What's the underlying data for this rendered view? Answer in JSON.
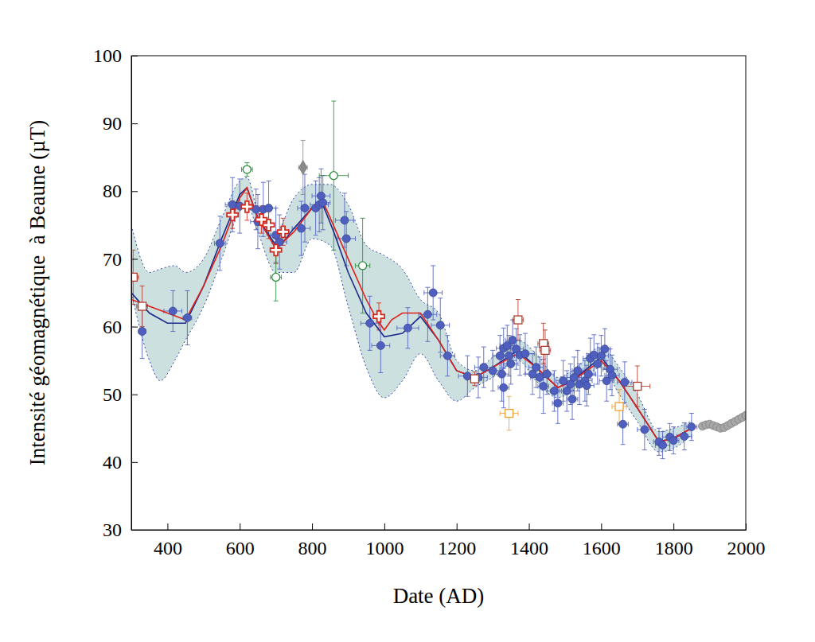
{
  "chart_data": {
    "type": "scatter",
    "x_label": "Date (AD)",
    "y_label": "Intensité géomagnétique  à Beaune (µT)",
    "xlim": [
      300,
      2000
    ],
    "ylim": [
      30,
      100
    ],
    "xticks": [
      400,
      600,
      800,
      1000,
      1200,
      1400,
      1600,
      1800,
      2000
    ],
    "yticks": [
      30,
      40,
      50,
      60,
      70,
      80,
      90,
      100
    ],
    "grid": false,
    "series": [
      {
        "type": "area",
        "color": "#3a48a8",
        "line_style": "dotted",
        "x": [
          300,
          350,
          380,
          420,
          450,
          500,
          550,
          600,
          620,
          650,
          700,
          750,
          800,
          850,
          900,
          950,
          1000,
          1050,
          1100,
          1150,
          1200,
          1250,
          1300,
          1370,
          1420,
          1480,
          1520,
          1600,
          1650,
          1700,
          1760,
          1800,
          1850
        ],
        "values": [
          75,
          68,
          68.5,
          69,
          68,
          70,
          76,
          81.5,
          82,
          77,
          74,
          79,
          81,
          81,
          78,
          72,
          70.5,
          68.5,
          64,
          62,
          55,
          53.5,
          55.5,
          58,
          56,
          52.5,
          53.5,
          57,
          54,
          50,
          44.5,
          45,
          46
        ],
        "lower": [
          65,
          55,
          52,
          55,
          58,
          63,
          70,
          77,
          78,
          74,
          68,
          68,
          73,
          72,
          63,
          54,
          49.5,
          52,
          56,
          52,
          49,
          51,
          52.5,
          55,
          52,
          49.5,
          50.5,
          54,
          50,
          46,
          41.5,
          42,
          44
        ]
      },
      {
        "type": "scatter",
        "marker": "circle",
        "color": "#a8a8a8",
        "x": [
          1880,
          1890,
          1900,
          1910,
          1920,
          1930,
          1940,
          1950,
          1960,
          1970,
          1980,
          1990,
          2000
        ],
        "values": [
          45.3,
          45.5,
          45.6,
          45.4,
          45.2,
          45,
          45.1,
          45.4,
          45.7,
          46,
          46.3,
          46.6,
          46.9
        ]
      },
      {
        "type": "scatter",
        "marker": "circle",
        "color": "#4f5fbf",
        "x": [
          330,
          415,
          455,
          545,
          580,
          600,
          645,
          650,
          665,
          680,
          700,
          710,
          770,
          780,
          810,
          820,
          825,
          830,
          890,
          895,
          960,
          990,
          1065,
          1120,
          1135,
          1155,
          1175,
          1230,
          1260,
          1275,
          1300,
          1320,
          1325,
          1330,
          1330,
          1340,
          1345,
          1350,
          1355,
          1365,
          1375,
          1390,
          1410,
          1420,
          1430,
          1440,
          1450,
          1470,
          1480,
          1495,
          1505,
          1515,
          1520,
          1525,
          1535,
          1540,
          1555,
          1560,
          1565,
          1570,
          1580,
          1590,
          1600,
          1610,
          1615,
          1625,
          1630,
          1660,
          1665,
          1720,
          1760,
          1770,
          1790,
          1800,
          1830,
          1850
        ],
        "values": [
          59.3,
          62.3,
          61.3,
          72.3,
          78,
          77.8,
          77.3,
          75.5,
          77.3,
          77.5,
          73.5,
          72.5,
          74.5,
          77.5,
          77.5,
          78,
          79.3,
          78.3,
          75.7,
          73,
          60.5,
          57.2,
          59.8,
          61.8,
          65,
          60.2,
          55.7,
          52.7,
          52.5,
          54,
          53.5,
          55.7,
          53,
          51,
          56.8,
          57.2,
          55.7,
          54.5,
          58,
          56.7,
          55.8,
          56,
          53,
          54,
          52.5,
          51.2,
          53,
          50.5,
          48.7,
          52,
          50.5,
          51.5,
          49.3,
          52.5,
          53.5,
          51.5,
          52,
          51.3,
          53,
          55.3,
          55.8,
          54.5,
          55.7,
          56.7,
          52,
          53.7,
          52.8,
          45.6,
          51.8,
          44.8,
          43,
          42.5,
          43.7,
          43.2,
          43.8,
          45.2
        ],
        "x_error": [
          10,
          25,
          12,
          15,
          20,
          15,
          20,
          20,
          15,
          20,
          15,
          20,
          25,
          20,
          25,
          25,
          25,
          20,
          25,
          25,
          25,
          25,
          30,
          25,
          25,
          25,
          20,
          25,
          25,
          25,
          20,
          20,
          20,
          15,
          20,
          20,
          15,
          20,
          20,
          20,
          20,
          25,
          20,
          20,
          25,
          15,
          20,
          20,
          15,
          20,
          20,
          15,
          15,
          20,
          15,
          20,
          20,
          20,
          20,
          20,
          20,
          20,
          20,
          15,
          20,
          20,
          20,
          15,
          20,
          20,
          15,
          20,
          20,
          15,
          20,
          15
        ],
        "y_error": [
          4,
          3,
          4,
          4,
          4,
          4,
          3,
          4,
          4,
          4,
          4,
          4,
          4,
          5,
          4,
          4,
          4,
          4,
          4,
          4,
          4,
          4,
          3,
          4,
          4,
          4,
          3,
          3,
          3,
          3,
          3,
          3,
          4,
          3,
          3,
          3,
          3,
          3,
          3,
          3,
          3,
          3,
          3,
          3,
          3,
          4,
          3,
          3,
          3,
          3,
          3,
          3,
          3,
          3,
          3,
          3,
          3,
          3,
          3,
          3,
          3,
          3,
          3,
          3,
          3,
          3,
          3,
          3,
          3,
          3,
          2,
          2,
          2,
          2,
          2,
          2
        ]
      },
      {
        "type": "line",
        "color": "#1c2a8c",
        "x": [
          300,
          350,
          400,
          450,
          500,
          550,
          600,
          620,
          650,
          700,
          720,
          750,
          800,
          830,
          860,
          900,
          950,
          1000,
          1050,
          1100,
          1150,
          1200,
          1250,
          1300,
          1370,
          1420,
          1480,
          1520,
          1600,
          1650,
          1700,
          1760,
          1800,
          1850
        ],
        "values": [
          65,
          62,
          60.5,
          60.5,
          66,
          73,
          79.5,
          80.5,
          76,
          72,
          72.5,
          74.5,
          77.5,
          78,
          74,
          68,
          62,
          58.5,
          59,
          61.5,
          58,
          53.5,
          52.5,
          54,
          56.5,
          54,
          51,
          52,
          55.5,
          52,
          48,
          43,
          43.5,
          45
        ]
      },
      {
        "type": "line",
        "color": "#e0201a",
        "x": [
          300,
          350,
          400,
          450,
          500,
          550,
          600,
          620,
          650,
          700,
          750,
          800,
          830,
          900,
          950,
          980,
          1000,
          1020,
          1050,
          1100,
          1150,
          1200,
          1250,
          1300,
          1370,
          1420,
          1480,
          1520,
          1600,
          1650,
          1700,
          1760,
          1800,
          1850
        ],
        "values": [
          64,
          63,
          62,
          61,
          66,
          72,
          79,
          80.5,
          76,
          71.5,
          74,
          77.5,
          78.5,
          70,
          64,
          61,
          59.5,
          61,
          62,
          62,
          58,
          53.5,
          52.5,
          54,
          56,
          54,
          51,
          52,
          55,
          52,
          48,
          43,
          43.5,
          45
        ]
      },
      {
        "type": "scatter",
        "marker": "cross",
        "color": "#d42a1e",
        "x": [
          580,
          620,
          660,
          680,
          700,
          720,
          985
        ],
        "values": [
          76.5,
          77.7,
          75.8,
          75,
          71.3,
          74,
          61.5
        ],
        "x_error": [
          15,
          15,
          15,
          15,
          15,
          15,
          15
        ],
        "y_error": [
          2,
          2,
          2,
          2,
          2,
          2,
          2
        ]
      },
      {
        "type": "scatter",
        "marker": "square_open",
        "color": "#b0392a",
        "x": [
          305,
          330,
          1250,
          1370,
          1440,
          1445,
          1700
        ],
        "values": [
          67.3,
          63,
          52.3,
          61,
          57.5,
          56.5,
          51.2
        ],
        "x_error": [
          15,
          15,
          20,
          15,
          15,
          15,
          35
        ],
        "y_error": [
          4,
          3,
          1,
          3,
          3,
          3,
          3
        ]
      },
      {
        "type": "scatter",
        "marker": "square_open",
        "color": "#f0a030",
        "x": [
          1345,
          1650
        ],
        "values": [
          47.2,
          48.2
        ],
        "x_error": [
          25,
          20
        ],
        "y_error": [
          2.5,
          2.5
        ]
      },
      {
        "type": "scatter",
        "marker": "circle_open",
        "color": "#2e8b3e",
        "x": [
          620,
          700,
          860,
          940
        ],
        "values": [
          83.2,
          67.3,
          82.3,
          69
        ],
        "x_error": [
          15,
          15,
          40,
          20
        ],
        "y_error": [
          1,
          3.5,
          11,
          7
        ]
      },
      {
        "type": "scatter",
        "marker": "diamond",
        "color": "#8a8a8a",
        "x": [
          775
        ],
        "values": [
          83.5
        ],
        "x_error": [
          12
        ],
        "y_error": [
          4
        ]
      }
    ]
  }
}
